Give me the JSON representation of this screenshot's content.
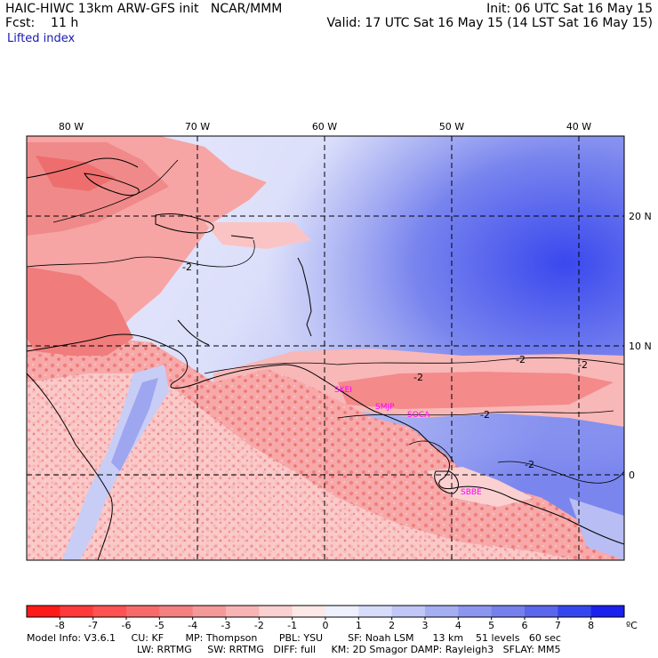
{
  "header": {
    "title_left": "HAIC-HIWC 13km ARW-GFS init   NCAR/MMM",
    "init": "Init: 06 UTC Sat 16 May 15",
    "fcst": "Fcst:    11 h",
    "valid": "Valid: 17 UTC Sat 16 May 15 (14 LST Sat 16 May 15)",
    "field": "Lifted index"
  },
  "map": {
    "lon_labels": [
      "80 W",
      "70 W",
      "60 W",
      "50 W",
      "40 W"
    ],
    "lat_labels": [
      "20 N",
      "10 N",
      "0"
    ],
    "stations": [
      "SKEI",
      "SMJP",
      "SOCA",
      "SBBE"
    ],
    "contour_labels": [
      "-2",
      "-2",
      "-2",
      "-2",
      "-2",
      "-2"
    ],
    "colors": {
      "neg_strong": "#ff3333",
      "neg_mid": "#f07a7a",
      "neg_weak": "#ffc8c8",
      "pos_weak": "#d8dcf8",
      "pos_mid": "#a0a8f0",
      "pos_strong": "#3340ee"
    }
  },
  "colorbar": {
    "ticks": [
      "-8",
      "-7",
      "-6",
      "-5",
      "-4",
      "-3",
      "-2",
      "-1",
      "0",
      "1",
      "2",
      "3",
      "4",
      "5",
      "6",
      "7",
      "8"
    ],
    "unit": "ºC",
    "colors": [
      "#ff1a1a",
      "#ff3a3a",
      "#ff5252",
      "#f86a6a",
      "#f48080",
      "#f59898",
      "#f8b4b4",
      "#fbd0d0",
      "#fde8e8",
      "#eef0fe",
      "#d8dcfb",
      "#c0c6f6",
      "#a6aef2",
      "#8c96ee",
      "#7580ec",
      "#5a66ec",
      "#3646ee",
      "#1a20ee"
    ]
  },
  "footer": {
    "line1": "Model Info: V3.6.1     CU: KF       MP: Thompson       PBL: YSU        SF: Noah LSM      13 km    51 levels   60 sec",
    "line2": "LW: RRTMG     SW: RRTMG   DIFF: full     KM: 2D Smagor DAMP: Rayleigh3   SFLAY: MM5"
  }
}
